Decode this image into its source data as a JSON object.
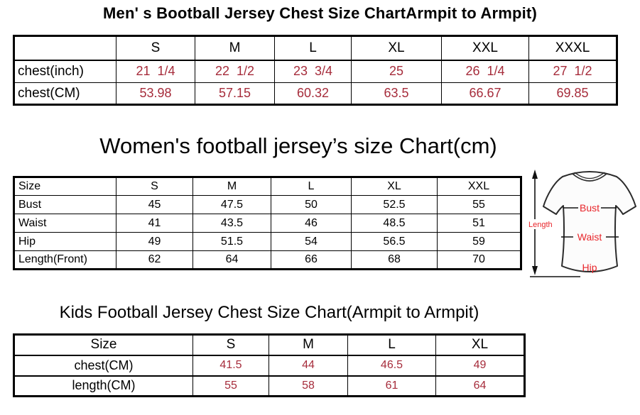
{
  "colors": {
    "value_red": "#a62c3b",
    "label_red": "#e8262b",
    "text_black": "#000000",
    "background": "#ffffff"
  },
  "men_chart": {
    "title": "Men' s Bootball Jersey Chest Size ChartArmpit to Armpit)",
    "columns": [
      "",
      "S",
      "M",
      "L",
      "XL",
      "XXL",
      "XXXL"
    ],
    "rows": [
      {
        "label": "chest(inch)",
        "values": [
          "21  1/4",
          "22  1/2",
          "23  3/4",
          "25",
          "26  1/4",
          "27  1/2"
        ]
      },
      {
        "label": "chest(CM)",
        "values": [
          "53.98",
          "57.15",
          "60.32",
          "63.5",
          "66.67",
          "69.85"
        ]
      }
    ]
  },
  "women_chart": {
    "title": "Women's football jersey’s size Chart(cm)",
    "columns": [
      "Size",
      "S",
      "M",
      "L",
      "XL",
      "XXL"
    ],
    "rows": [
      {
        "label": "Bust",
        "values": [
          "45",
          "47.5",
          "50",
          "52.5",
          "55"
        ]
      },
      {
        "label": "Waist",
        "values": [
          "41",
          "43.5",
          "46",
          "48.5",
          "51"
        ]
      },
      {
        "label": "Hip",
        "values": [
          "49",
          "51.5",
          "54",
          "56.5",
          "59"
        ]
      },
      {
        "label": "Length(Front)",
        "values": [
          "62",
          "64",
          "66",
          "68",
          "70"
        ]
      }
    ]
  },
  "kids_chart": {
    "title": "Kids Football Jersey Chest Size Chart(Armpit to Armpit)",
    "columns": [
      "Size",
      "S",
      "M",
      "L",
      "XL"
    ],
    "rows": [
      {
        "label": "chest(CM)",
        "values": [
          "41.5",
          "44",
          "46.5",
          "49"
        ]
      },
      {
        "label": "length(CM)",
        "values": [
          "55",
          "58",
          "61",
          "64"
        ]
      }
    ]
  },
  "diagram": {
    "length_label": "Length",
    "bust_label": "Bust",
    "waist_label": "Waist",
    "hip_label": "Hip"
  }
}
